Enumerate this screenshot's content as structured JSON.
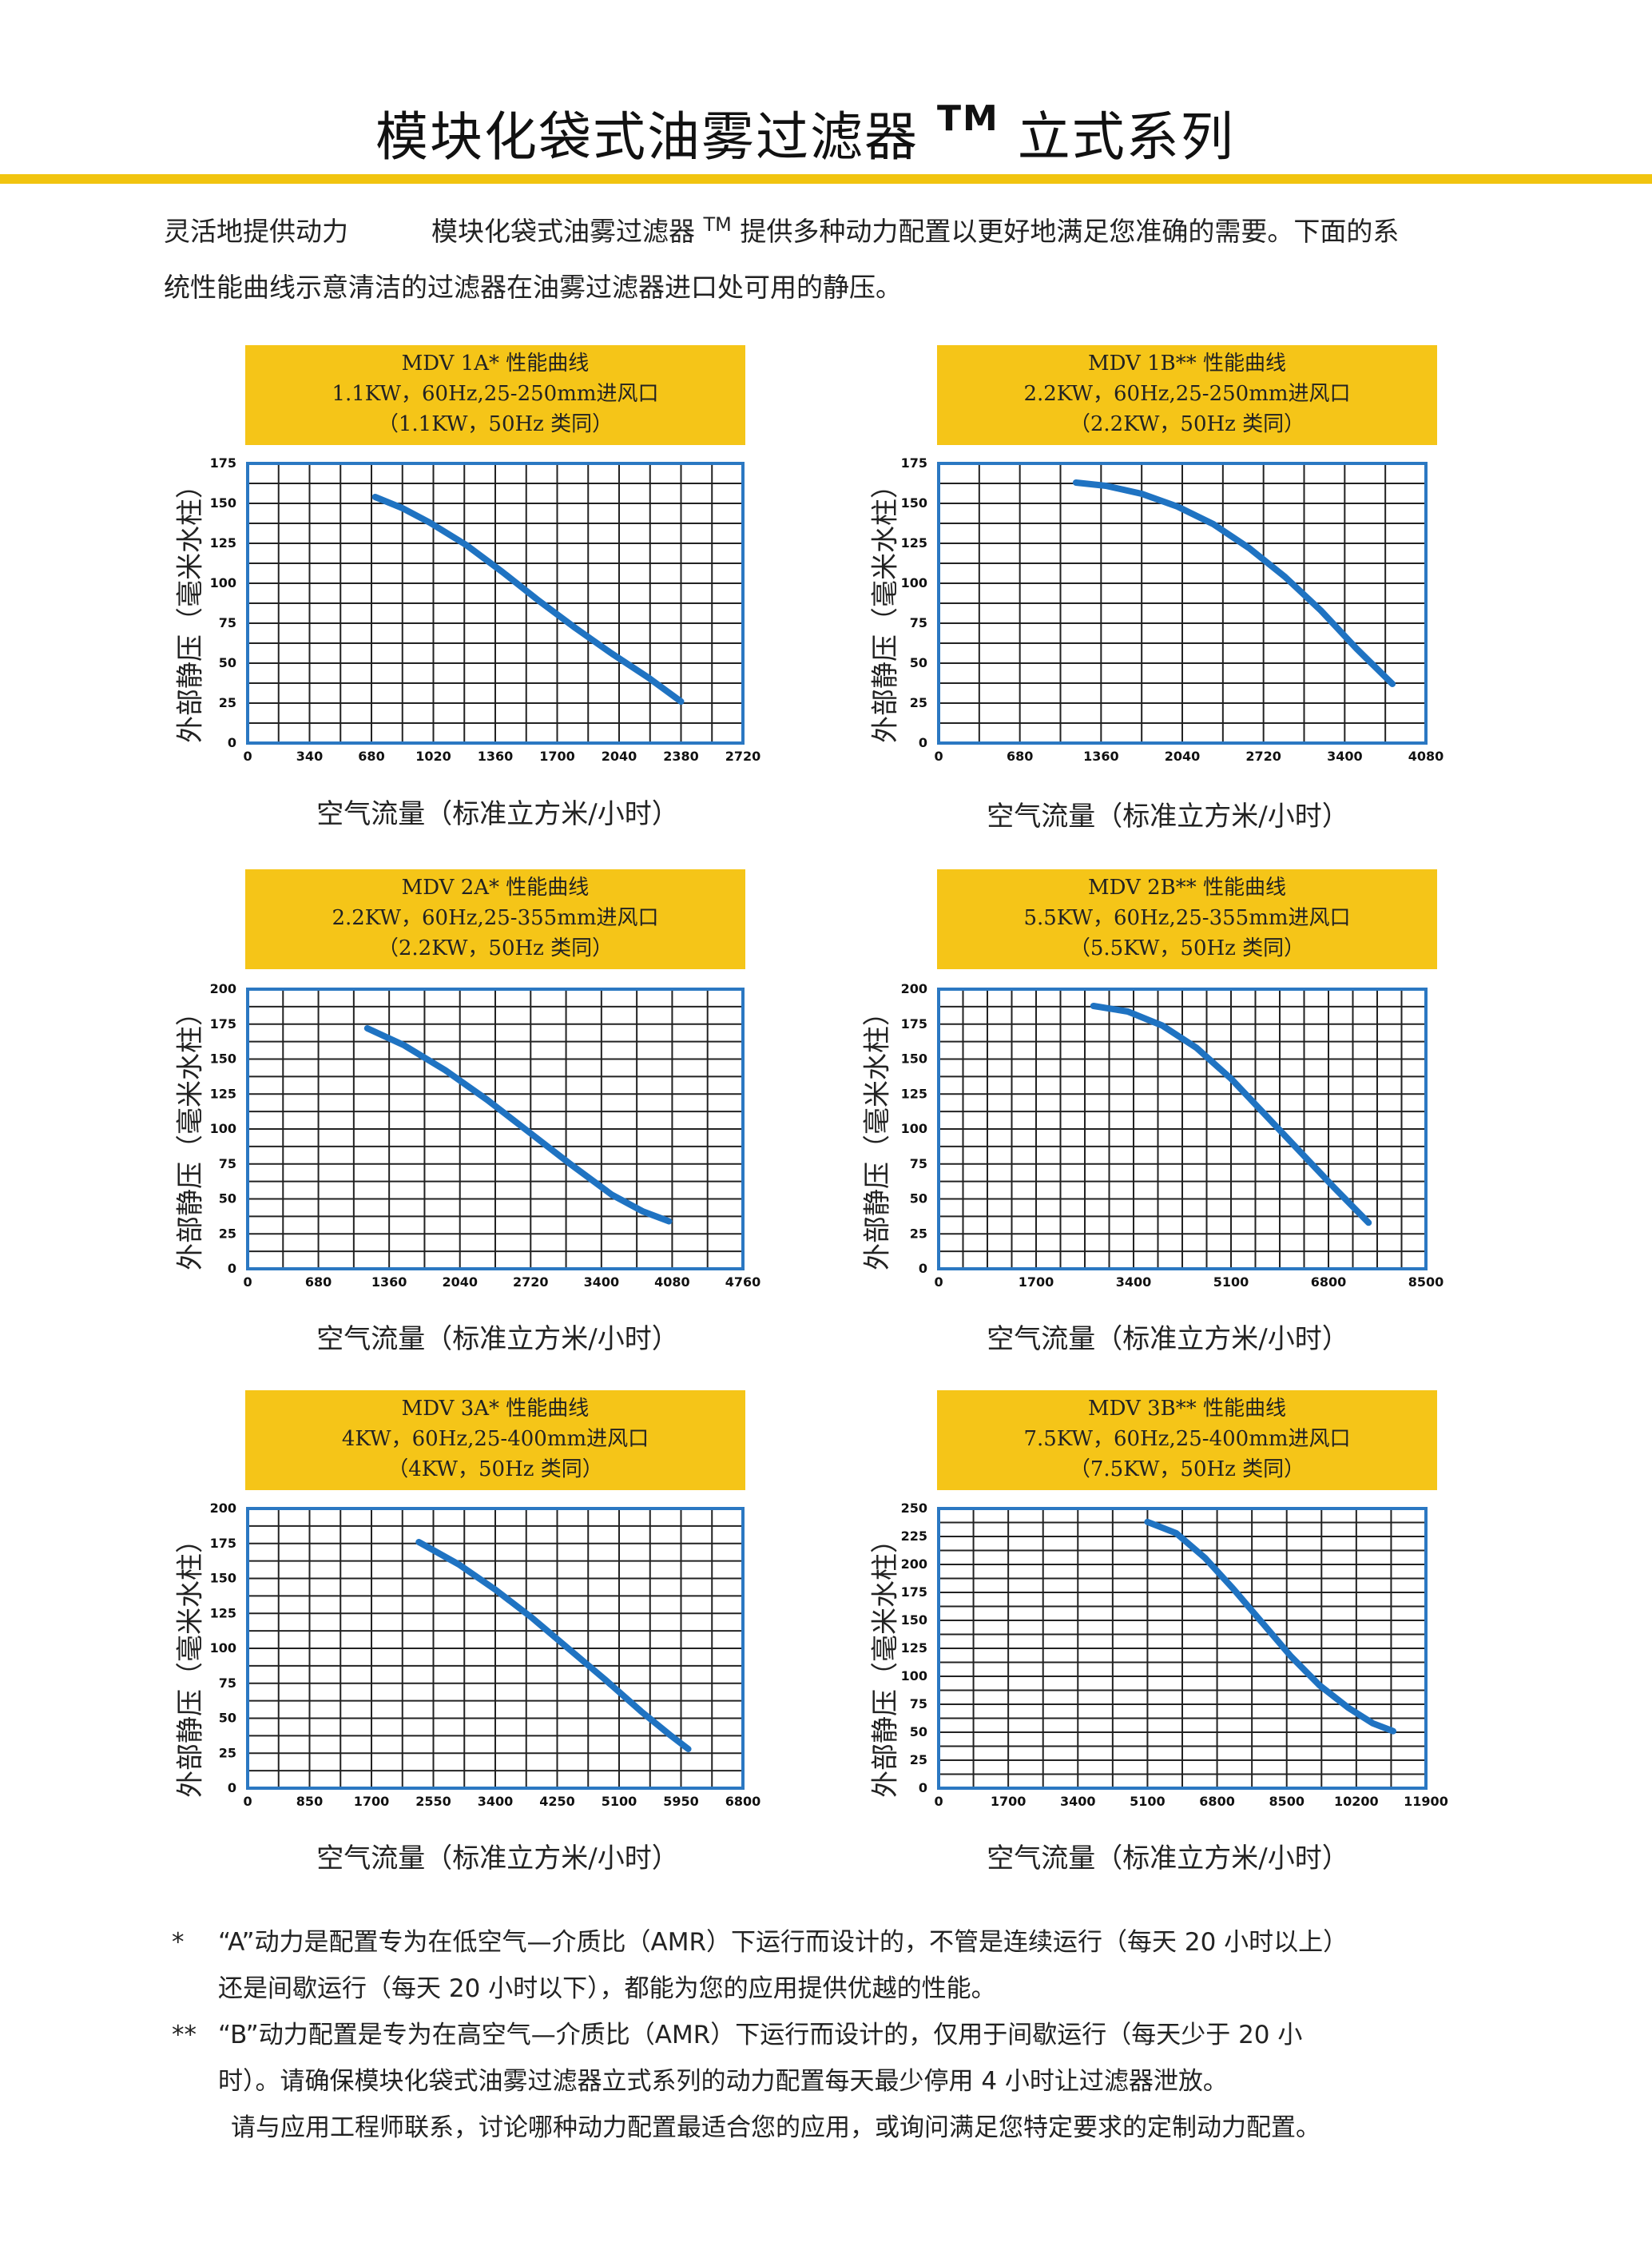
{
  "page": {
    "title": "模块化袋式油雾过滤器",
    "title_tm": "TM",
    "title_suffix": "立式系列",
    "intro_lead": "灵活地提供动力",
    "intro_text1": "模块化袋式油雾过滤器",
    "intro_tm": "TM",
    "intro_text2": "提供多种动力配置以更好地满足您准确的需要。下面的系",
    "intro_line2": "统性能曲线示意清洁的过滤器在油雾过滤器进口处可用的静压。",
    "ylabel": "外部静压（毫米水柱）",
    "xlabel": "空气流量（标准立方米/小时）"
  },
  "chart_data": [
    {
      "type": "line",
      "title": "MDV 1A* 性能曲线",
      "subtitle": "1.1KW，60Hz,25-250mm进风口",
      "subtitle2": "（1.1KW，50Hz 类同）",
      "xlabel": "空气流量（标准立方米/小时）",
      "ylabel": "外部静压（毫米水柱）",
      "xlim": [
        0,
        2720
      ],
      "ylim": [
        0,
        175
      ],
      "xticks": [
        0,
        340,
        680,
        1020,
        1360,
        1700,
        2040,
        2380,
        2720
      ],
      "yticks": [
        0,
        25,
        50,
        75,
        100,
        125,
        150,
        175
      ],
      "xgrid": 170,
      "ygrid": 12.5,
      "x": [
        700,
        850,
        1000,
        1200,
        1400,
        1600,
        1800,
        2000,
        2200,
        2380
      ],
      "y": [
        154,
        147,
        138,
        124,
        107,
        89,
        72,
        56,
        41,
        26
      ]
    },
    {
      "type": "line",
      "title": "MDV 1B** 性能曲线",
      "subtitle": "2.2KW，60Hz,25-250mm进风口",
      "subtitle2": "（2.2KW，50Hz 类同）",
      "xlabel": "空气流量（标准立方米/小时）",
      "ylabel": "外部静压（毫米水柱）",
      "xlim": [
        0,
        4080
      ],
      "ylim": [
        0,
        175
      ],
      "xticks": [
        0,
        680,
        1360,
        2040,
        2720,
        3400,
        4080
      ],
      "yticks": [
        0,
        25,
        50,
        75,
        100,
        125,
        150,
        175
      ],
      "xgrid": 340,
      "ygrid": 12.5,
      "x": [
        1150,
        1400,
        1700,
        2000,
        2300,
        2600,
        2900,
        3200,
        3500,
        3800
      ],
      "y": [
        163,
        161,
        156,
        148,
        137,
        122,
        104,
        83,
        59,
        37
      ]
    },
    {
      "type": "line",
      "title": "MDV 2A* 性能曲线",
      "subtitle": "2.2KW，60Hz,25-355mm进风口",
      "subtitle2": "（2.2KW，50Hz 类同）",
      "xlabel": "空气流量（标准立方米/小时）",
      "ylabel": "外部静压（毫米水柱）",
      "xlim": [
        0,
        4760
      ],
      "ylim": [
        0,
        200
      ],
      "xticks": [
        0,
        680,
        1360,
        2040,
        2720,
        3400,
        4080,
        4760
      ],
      "yticks": [
        0,
        25,
        50,
        75,
        100,
        125,
        150,
        175,
        200
      ],
      "xgrid": 340,
      "ygrid": 12.5,
      "x": [
        1150,
        1500,
        1900,
        2300,
        2700,
        3100,
        3500,
        3800,
        4050
      ],
      "y": [
        172,
        160,
        142,
        121,
        98,
        75,
        53,
        41,
        34
      ]
    },
    {
      "type": "line",
      "title": "MDV 2B** 性能曲线",
      "subtitle": "5.5KW，60Hz,25-355mm进风口",
      "subtitle2": "（5.5KW，50Hz 类同）",
      "xlabel": "空气流量（标准立方米/小时）",
      "ylabel": "外部静压（毫米水柱）",
      "xlim": [
        0,
        8500
      ],
      "ylim": [
        0,
        200
      ],
      "xticks": [
        0,
        1700,
        3400,
        5100,
        6800,
        8500
      ],
      "yticks": [
        0,
        25,
        50,
        75,
        100,
        125,
        150,
        175,
        200
      ],
      "xgrid": 425,
      "ygrid": 12.5,
      "x": [
        2700,
        3300,
        3900,
        4500,
        5100,
        5700,
        6300,
        6900,
        7500
      ],
      "y": [
        188,
        184,
        174,
        158,
        136,
        110,
        84,
        58,
        33
      ]
    },
    {
      "type": "line",
      "title": "MDV 3A* 性能曲线",
      "subtitle": "4KW，60Hz,25-400mm进风口",
      "subtitle2": "（4KW，50Hz 类同）",
      "xlabel": "空气流量（标准立方米/小时）",
      "ylabel": "外部静压（毫米水柱）",
      "xlim": [
        0,
        6800
      ],
      "ylim": [
        0,
        200
      ],
      "xticks": [
        0,
        850,
        1700,
        2550,
        3400,
        4250,
        5100,
        5950,
        6800
      ],
      "yticks": [
        0,
        25,
        50,
        75,
        100,
        125,
        150,
        175,
        200
      ],
      "xgrid": 425,
      "ygrid": 12.5,
      "x": [
        2350,
        2900,
        3400,
        3900,
        4400,
        4900,
        5400,
        5800,
        6050
      ],
      "y": [
        176,
        160,
        142,
        122,
        100,
        78,
        55,
        38,
        28
      ]
    },
    {
      "type": "line",
      "title": "MDV 3B** 性能曲线",
      "subtitle": "7.5KW，60Hz,25-400mm进风口",
      "subtitle2": "（7.5KW，50Hz 类同）",
      "xlabel": "空气流量（标准立方米/小时）",
      "ylabel": "外部静压（毫米水柱）",
      "xlim": [
        0,
        11900
      ],
      "ylim": [
        0,
        250
      ],
      "xticks": [
        0,
        1700,
        3400,
        5100,
        6800,
        8500,
        10200,
        11900
      ],
      "yticks": [
        0,
        25,
        50,
        75,
        100,
        125,
        150,
        175,
        200,
        225,
        250
      ],
      "xgrid": 850,
      "ygrid": 12.5,
      "x": [
        5100,
        5800,
        6500,
        7200,
        7900,
        8600,
        9300,
        10000,
        10600,
        11100
      ],
      "y": [
        238,
        228,
        206,
        178,
        148,
        118,
        92,
        72,
        58,
        51
      ]
    }
  ],
  "notes": {
    "n1_mark": "*",
    "n1_line1": "“A”动力是配置专为在低空气—介质比（AMR）下运行而设计的，不管是连续运行（每天 20 小时以上）",
    "n1_line2": "还是间歇运行（每天 20 小时以下），都能为您的应用提供优越的性能。",
    "n2_mark": "**",
    "n2_line1": "“B”动力配置是专为在高空气—介质比（AMR）下运行而设计的，仅用于间歇运行（每天少于 20 小",
    "n2_line2": "时）。请确保模块化袋式油雾过滤器立式系列的动力配置每天最少停用 4 小时让过滤器泄放。",
    "n3": "请与应用工程师联系，讨论哪种动力配置最适合您的应用，或询问满足您特定要求的定制动力配置。"
  }
}
